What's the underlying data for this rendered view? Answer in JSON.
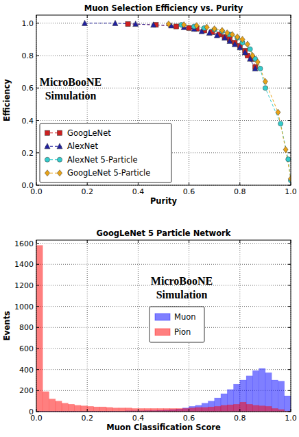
{
  "chart_data": [
    {
      "type": "line",
      "title": "Muon Selection Efficiency vs. Purity",
      "x_label": "Purity",
      "y_label": "Efficiency",
      "annotation": [
        "MicroBooNE",
        "Simulation"
      ],
      "xlim": [
        0,
        1
      ],
      "ylim": [
        0,
        1.05
      ],
      "xticks": [
        {
          "value": 0,
          "label": "0.0"
        },
        {
          "value": 0.2,
          "label": "0.2"
        },
        {
          "value": 0.4,
          "label": "0.4"
        },
        {
          "value": 0.6,
          "label": "0.6"
        },
        {
          "value": 0.8,
          "label": "0.8"
        },
        {
          "value": 1,
          "label": "1.0"
        }
      ],
      "yticks": [
        {
          "value": 0,
          "label": "0.0"
        },
        {
          "value": 0.2,
          "label": "0.2"
        },
        {
          "value": 0.4,
          "label": "0.4"
        },
        {
          "value": 0.6,
          "label": "0.6"
        },
        {
          "value": 0.8,
          "label": "0.8"
        },
        {
          "value": 1,
          "label": "1.0"
        }
      ],
      "grid": true,
      "legend": "lower left",
      "series": [
        {
          "name": "GoogLeNet",
          "color": "#cc2020",
          "marker": "square",
          "line_style": "dashed",
          "x": [
            0.36,
            0.47,
            0.55,
            0.6,
            0.63,
            0.66,
            0.69,
            0.72,
            0.74,
            0.76,
            0.78,
            0.8,
            0.82,
            0.83,
            0.85,
            0.86
          ],
          "values": [
            0.995,
            0.99,
            0.98,
            0.97,
            0.965,
            0.955,
            0.945,
            0.93,
            0.915,
            0.9,
            0.88,
            0.86,
            0.83,
            0.8,
            0.78,
            0.73
          ]
        },
        {
          "name": "AlexNet",
          "color": "#2020a0",
          "marker": "triangle",
          "line_style": "dashed",
          "x": [
            0.19,
            0.31,
            0.39,
            0.46,
            0.53,
            0.58,
            0.62,
            0.65,
            0.68,
            0.71,
            0.74,
            0.76,
            0.78,
            0.8,
            0.82,
            0.84,
            0.86
          ],
          "values": [
            1.0,
            1.0,
            0.995,
            0.99,
            0.985,
            0.975,
            0.965,
            0.95,
            0.94,
            0.925,
            0.91,
            0.89,
            0.87,
            0.85,
            0.82,
            0.78,
            0.72
          ]
        },
        {
          "name": "AlexNet 5-Particle",
          "color": "#33cccc",
          "marker": "circle",
          "line_style": "dashed",
          "x": [
            0.57,
            0.62,
            0.66,
            0.7,
            0.73,
            0.76,
            0.79,
            0.81,
            0.84,
            0.86,
            0.88,
            0.9,
            0.96,
            0.99,
            1.0
          ],
          "values": [
            0.99,
            0.98,
            0.97,
            0.96,
            0.95,
            0.93,
            0.91,
            0.88,
            0.84,
            0.78,
            0.72,
            0.6,
            0.38,
            0.16,
            0.03
          ]
        },
        {
          "name": "GoogLeNet 5-Particle",
          "color": "#e8a317",
          "marker": "diamond",
          "line_style": "dashed",
          "x": [
            0.52,
            0.58,
            0.63,
            0.67,
            0.7,
            0.73,
            0.75,
            0.77,
            0.79,
            0.81,
            0.83,
            0.85,
            0.87,
            0.9,
            0.95,
            0.98,
            1.0
          ],
          "values": [
            0.995,
            0.99,
            0.985,
            0.975,
            0.965,
            0.955,
            0.94,
            0.93,
            0.915,
            0.9,
            0.87,
            0.8,
            0.76,
            0.64,
            0.45,
            0.22,
            0.04
          ]
        }
      ]
    },
    {
      "type": "histogram",
      "title": "GoogLeNet 5 Particle Network",
      "x_label": "Muon Classification Score",
      "y_label": "Events",
      "annotation": [
        "MicroBooNE",
        "Simulation"
      ],
      "xlim": [
        0,
        1
      ],
      "ylim": [
        0,
        1630
      ],
      "xticks": [
        {
          "value": 0,
          "label": "0.0"
        },
        {
          "value": 0.2,
          "label": "0.2"
        },
        {
          "value": 0.4,
          "label": "0.4"
        },
        {
          "value": 0.6,
          "label": "0.6"
        },
        {
          "value": 0.8,
          "label": "0.8"
        },
        {
          "value": 1,
          "label": "1.0"
        }
      ],
      "yticks": [
        0,
        200,
        400,
        600,
        800,
        1000,
        1200,
        1400,
        1600
      ],
      "grid": true,
      "legend": "center",
      "bins": [
        0,
        0.025,
        0.05,
        0.075,
        0.1,
        0.125,
        0.15,
        0.175,
        0.2,
        0.225,
        0.25,
        0.275,
        0.3,
        0.325,
        0.35,
        0.375,
        0.4,
        0.425,
        0.45,
        0.475,
        0.5,
        0.525,
        0.55,
        0.575,
        0.6,
        0.625,
        0.65,
        0.675,
        0.7,
        0.725,
        0.75,
        0.775,
        0.8,
        0.825,
        0.85,
        0.875,
        0.9,
        0.925,
        0.95,
        0.975,
        1.0
      ],
      "series": [
        {
          "name": "Muon",
          "color": "#0000ff",
          "values": [
            5,
            5,
            5,
            5,
            5,
            5,
            5,
            5,
            5,
            5,
            5,
            5,
            5,
            5,
            8,
            8,
            8,
            10,
            10,
            12,
            15,
            20,
            25,
            35,
            50,
            60,
            80,
            100,
            130,
            170,
            210,
            260,
            300,
            340,
            390,
            410,
            370,
            300,
            290,
            150
          ]
        },
        {
          "name": "Pion",
          "color": "#ff0000",
          "values": [
            1580,
            190,
            120,
            100,
            80,
            70,
            60,
            55,
            50,
            45,
            45,
            40,
            35,
            35,
            35,
            30,
            30,
            30,
            30,
            30,
            30,
            30,
            30,
            30,
            35,
            40,
            40,
            45,
            50,
            60,
            65,
            70,
            90,
            70,
            60,
            55,
            50,
            30,
            20,
            5
          ]
        }
      ]
    }
  ]
}
